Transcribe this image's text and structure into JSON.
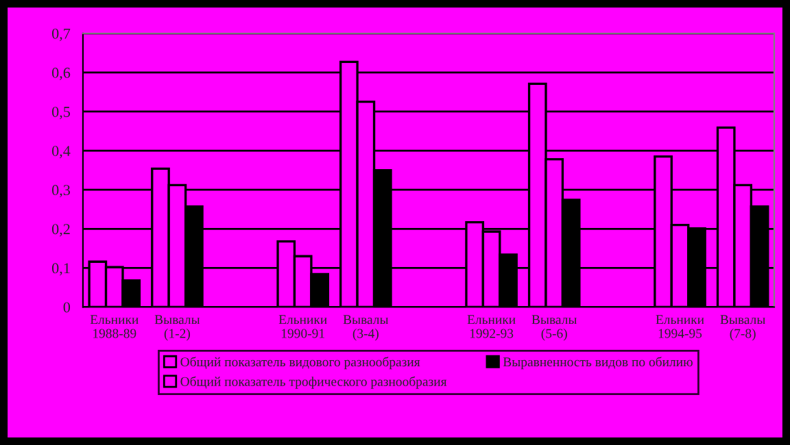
{
  "chart_data": {
    "type": "bar",
    "categories": [
      "Ельники\n1988-89",
      "Вывалы\n(1-2)",
      null,
      "Ельники\n1990-91",
      "Вывалы\n(3-4)",
      null,
      "Ельники\n1992-93",
      "Вывалы\n(5-6)",
      null,
      "Ельники\n1994-95",
      "Вывалы\n(7-8)"
    ],
    "series": [
      {
        "name": "Общий показатель видового разнообразия",
        "color": "#ff00ff",
        "values": [
          0.116,
          0.354,
          null,
          0.168,
          0.627,
          null,
          0.217,
          0.571,
          null,
          0.385,
          0.459
        ]
      },
      {
        "name": "Общий показатель трофического разнообразия",
        "color": "#ff00ff",
        "values": [
          0.102,
          0.312,
          null,
          0.13,
          0.525,
          null,
          0.193,
          0.378,
          null,
          0.21,
          0.312
        ]
      },
      {
        "name": "Выравненность видов по обилию",
        "color": "#000000",
        "values": [
          0.068,
          0.257,
          null,
          0.084,
          0.35,
          null,
          0.134,
          0.274,
          null,
          0.201,
          0.257
        ]
      }
    ],
    "ylim": [
      0,
      0.7
    ],
    "yticks": [
      {
        "value": 0,
        "label": "0"
      },
      {
        "value": 0.1,
        "label": "0,1"
      },
      {
        "value": 0.2,
        "label": "0,2"
      },
      {
        "value": 0.3,
        "label": "0,3"
      },
      {
        "value": 0.4,
        "label": "0,4"
      },
      {
        "value": 0.5,
        "label": "0,5"
      },
      {
        "value": 0.6,
        "label": "0,6"
      },
      {
        "value": 0.7,
        "label": "0,7"
      }
    ],
    "grid": "y",
    "legend": "bottom"
  }
}
